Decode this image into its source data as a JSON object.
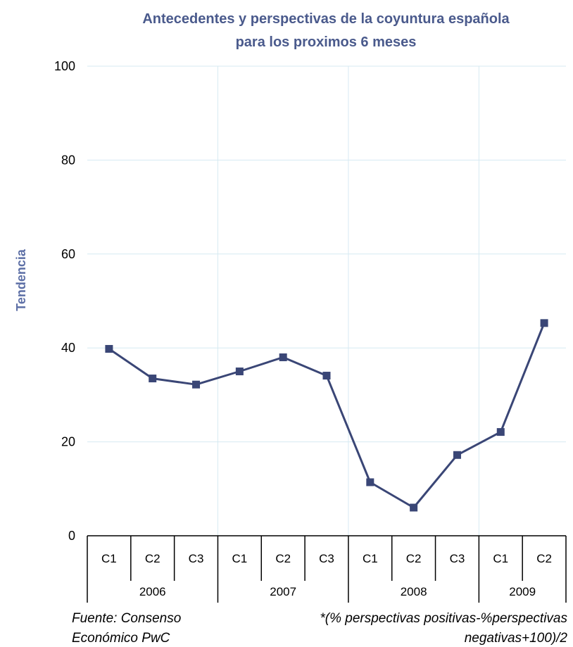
{
  "chart_data": {
    "type": "line",
    "title_line1": "Antecedentes y perspectivas de la coyuntura española",
    "title_line2": "para los proximos 6 meses",
    "ylabel": "Tendencia",
    "ylim": [
      0,
      100
    ],
    "yticks": [
      "0",
      "20",
      "40",
      "60",
      "80",
      "100"
    ],
    "categories": [
      "C1",
      "C2",
      "C3",
      "C1",
      "C2",
      "C3",
      "C1",
      "C2",
      "C3",
      "C1",
      "C2"
    ],
    "groups": [
      {
        "label": "2006",
        "count": 3
      },
      {
        "label": "2007",
        "count": 3
      },
      {
        "label": "2008",
        "count": 3
      },
      {
        "label": "2009",
        "count": 2
      }
    ],
    "series": [
      {
        "values": [
          39.8,
          33.5,
          32.2,
          35.0,
          38.0,
          34.1,
          11.4,
          6.0,
          17.2,
          22.1,
          45.3
        ],
        "color": "#3a4676"
      }
    ],
    "grid": true,
    "gridColor": "#d6eaf2"
  },
  "notes": {
    "source_line1": "Fuente: Consenso",
    "source_line2": "Económico PwC",
    "formula_line1": "*(% perspectivas positivas-%perspectivas",
    "formula_line2": "negativas+100)/2"
  }
}
